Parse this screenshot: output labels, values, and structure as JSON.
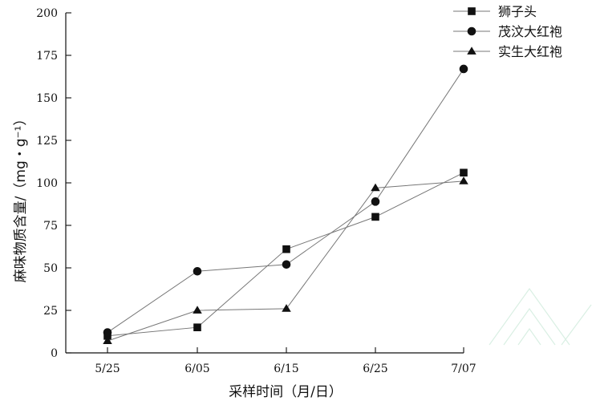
{
  "chart_data": {
    "type": "line",
    "title": "",
    "xlabel": "采样时间（月/日）",
    "ylabel": "麻味物质含量/（mg・g⁻¹）",
    "categories": [
      "5/25",
      "6/05",
      "6/15",
      "6/25",
      "7/07"
    ],
    "ylim": [
      0,
      200
    ],
    "yticks": [
      0,
      25,
      50,
      75,
      100,
      125,
      150,
      175,
      200
    ],
    "grid": false,
    "legend_position": "top-right",
    "series": [
      {
        "name": "狮子头",
        "marker": "square",
        "values": [
          10,
          15,
          61,
          80,
          106
        ]
      },
      {
        "name": "茂汶大红袍",
        "marker": "circle",
        "values": [
          12,
          48,
          52,
          89,
          167
        ]
      },
      {
        "name": "实生大红袍",
        "marker": "triangle",
        "values": [
          7,
          25,
          26,
          97,
          101
        ]
      }
    ],
    "colors": {
      "line": "#777777",
      "marker": "#111111",
      "axis": "#111111"
    }
  }
}
